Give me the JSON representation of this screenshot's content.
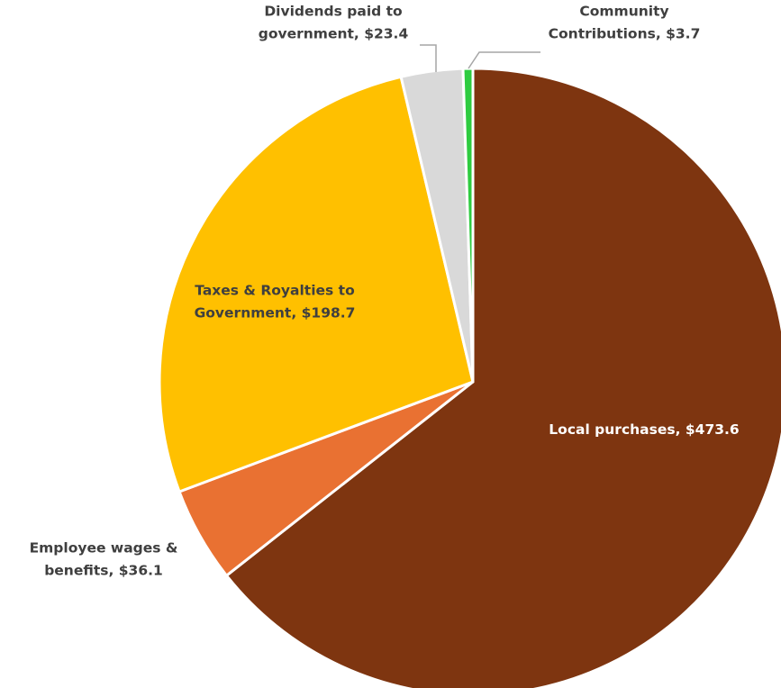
{
  "chart_data": {
    "type": "pie",
    "title": "",
    "slices": [
      {
        "name": "Local purchases",
        "value": 473.6,
        "value_label": "$473.6",
        "color": "#7e3510",
        "label_lines": [
          "Local purchases,  $473.6"
        ]
      },
      {
        "name": "Employee wages & benefits",
        "value": 36.1,
        "value_label": "$36.1",
        "color": "#e97132",
        "label_lines": [
          "Employee wages &",
          "benefits, $36.1"
        ]
      },
      {
        "name": "Taxes & Royalties to Government",
        "value": 198.7,
        "value_label": "$198.7",
        "color": "#ffc000",
        "label_lines": [
          "Taxes & Royalties to",
          "Government, $198.7"
        ]
      },
      {
        "name": "Dividends paid to government",
        "value": 23.4,
        "value_label": "$23.4",
        "color": "#d9d9d9",
        "label_lines": [
          "Dividends paid to",
          "government, $23.4"
        ]
      },
      {
        "name": "Community Contributions",
        "value": 3.7,
        "value_label": "$3.7",
        "color": "#2ecc40",
        "label_lines": [
          "Community",
          "Contributions, $3.7"
        ]
      }
    ],
    "start_angle": "12 o'clock",
    "direction": "clockwise",
    "legend": "none"
  }
}
